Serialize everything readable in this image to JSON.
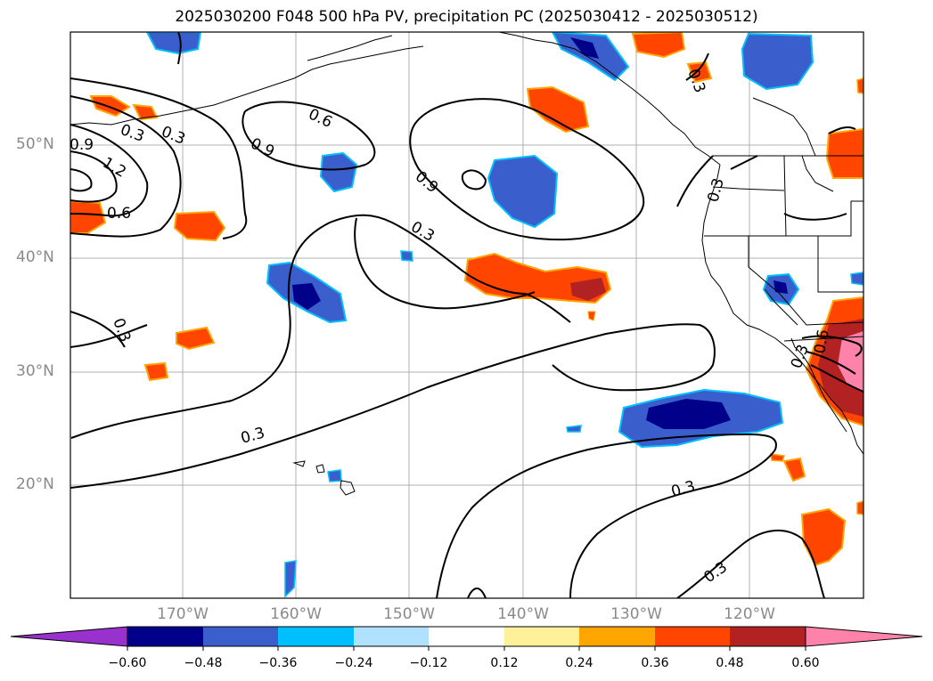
{
  "title": "2025030200 F048 500 hPa PV, precipitation PC (2025030412 - 2025030512)",
  "lat_labels": [
    "50°N",
    "40°N",
    "30°N",
    "20°N"
  ],
  "lon_labels": [
    "170°W",
    "160°W",
    "150°W",
    "140°W",
    "130°W",
    "120°W"
  ],
  "contour_labels": [
    "0.9",
    "1.2",
    "0.3",
    "0.3",
    "0.6",
    "0.9",
    "0.6",
    "0.9",
    "0.3",
    "0.3",
    "0.3",
    "0.3",
    "0.3",
    "0.3",
    "0.3",
    "0.3",
    "0.6"
  ],
  "colorbar": {
    "ticks": [
      "−0.60",
      "−0.48",
      "−0.36",
      "−0.24",
      "−0.12",
      "0.12",
      "0.24",
      "0.36",
      "0.48",
      "0.60"
    ],
    "colors": [
      "#9932cc",
      "#00008b",
      "#3a5fcd",
      "#00bfff",
      "#b0e2ff",
      "#ffffff",
      "#fff09a",
      "#ffa500",
      "#ff4500",
      "#b22222",
      "#ff82ab"
    ]
  }
}
